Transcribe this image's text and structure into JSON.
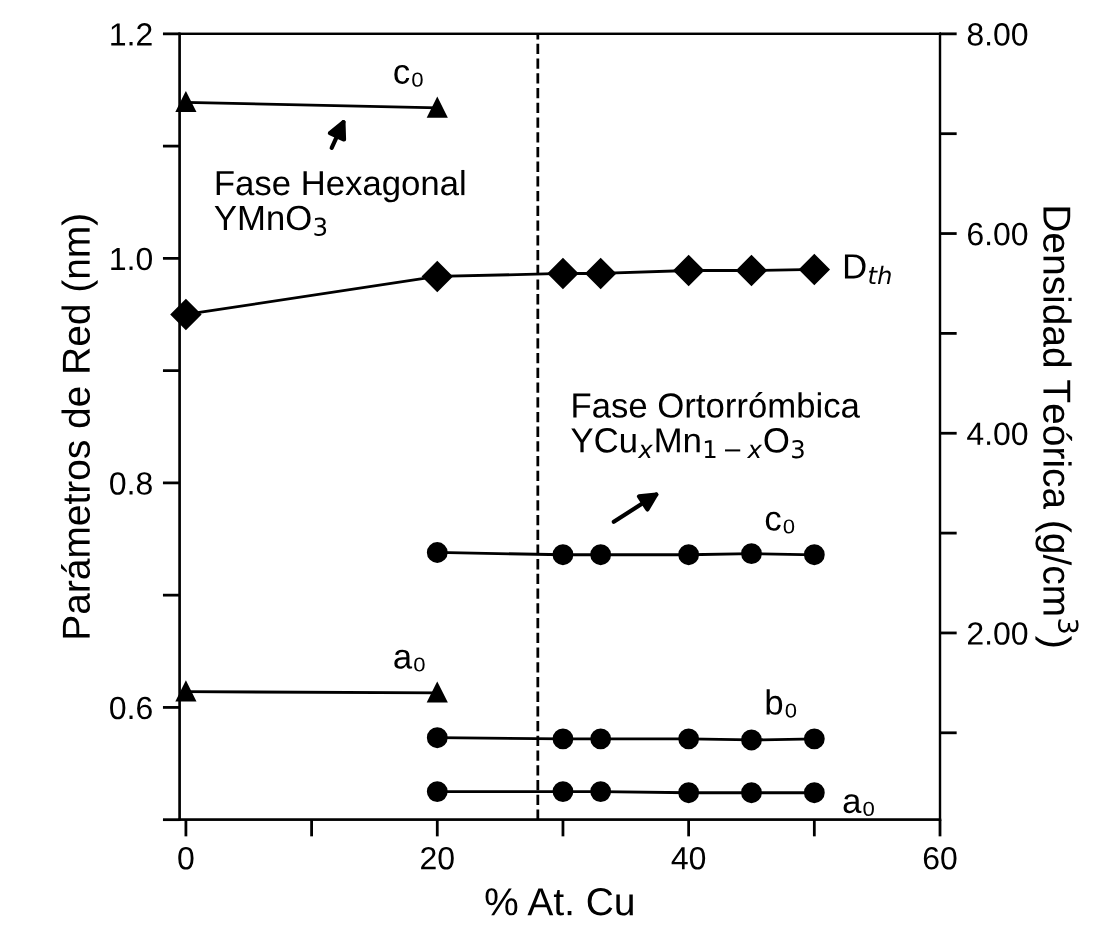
{
  "chart_data": {
    "type": "line",
    "xlabel": "% At. Cu",
    "ylabel": "Parámetros de Red (nm)",
    "y2label": "Densidad Teórica (g/cm$^{3}$)",
    "xlim": [
      -0.5,
      60
    ],
    "xticks": [
      0,
      {
        "value": 10,
        "label": null
      },
      20,
      {
        "value": 30,
        "label": null
      },
      40,
      {
        "value": 50,
        "label": null
      },
      60
    ],
    "ylim": [
      0.5,
      1.2
    ],
    "yticks": [
      {
        "value": 0.5,
        "label": null
      },
      0.6,
      {
        "value": 0.7,
        "label": null
      },
      0.8,
      {
        "value": 0.9,
        "label": null
      },
      {
        "value": 1.0,
        "label": "1.0"
      },
      {
        "value": 1.1,
        "label": null
      },
      1.2
    ],
    "y2lim": [
      0.13,
      8
    ],
    "y2ticks": [
      {
        "value": 1,
        "label": null
      },
      {
        "value": 2,
        "label": "2.00"
      },
      {
        "value": 3,
        "label": null
      },
      {
        "value": 4,
        "label": "4.00"
      },
      {
        "value": 5,
        "label": null
      },
      {
        "value": 6,
        "label": "6.00"
      },
      {
        "value": 7,
        "label": null
      },
      {
        "value": 8,
        "label": "8.00"
      }
    ],
    "grid": false,
    "legend": false,
    "line_style": "solid",
    "ref_lines": [
      {
        "axis": "x",
        "value": 28,
        "color": "#000000",
        "line_style": "dashed"
      }
    ],
    "series": [
      {
        "name": "c₀",
        "color": "#000000",
        "marker": "triangle",
        "x": [
          0,
          20
        ],
        "values": [
          1.139,
          1.134
        ]
      },
      {
        "name": "a₀",
        "color": "#000000",
        "marker": "triangle",
        "x": [
          0,
          20
        ],
        "values": [
          0.614,
          0.613
        ]
      },
      {
        "name": "D$_{th}$",
        "color": "#000000",
        "marker": "diamond",
        "axis": "y2",
        "x": [
          0,
          20,
          30,
          33,
          40,
          45,
          50
        ],
        "values": [
          5.19,
          5.57,
          5.6,
          5.6,
          5.63,
          5.63,
          5.64
        ]
      },
      {
        "name": "c₀",
        "color": "#000000",
        "marker": "circle",
        "x": [
          20,
          30,
          33,
          40,
          45,
          50
        ],
        "values": [
          0.738,
          0.736,
          0.736,
          0.736,
          0.737,
          0.736
        ]
      },
      {
        "name": "b₀",
        "color": "#000000",
        "marker": "circle",
        "x": [
          20,
          30,
          33,
          40,
          45,
          50
        ],
        "values": [
          0.573,
          0.572,
          0.572,
          0.572,
          0.571,
          0.572
        ]
      },
      {
        "name": "a₀",
        "color": "#000000",
        "marker": "circle",
        "x": [
          20,
          30,
          33,
          40,
          45,
          50
        ],
        "values": [
          0.525,
          0.525,
          0.525,
          0.524,
          0.524,
          0.524
        ]
      }
    ],
    "annotations": [
      "Fase Hexagonal\nYMnO$_{3}$",
      "Fase Ortorrómbica\nYCu$_{x}$Mn$_{1−x}$O$_{3}$"
    ]
  }
}
